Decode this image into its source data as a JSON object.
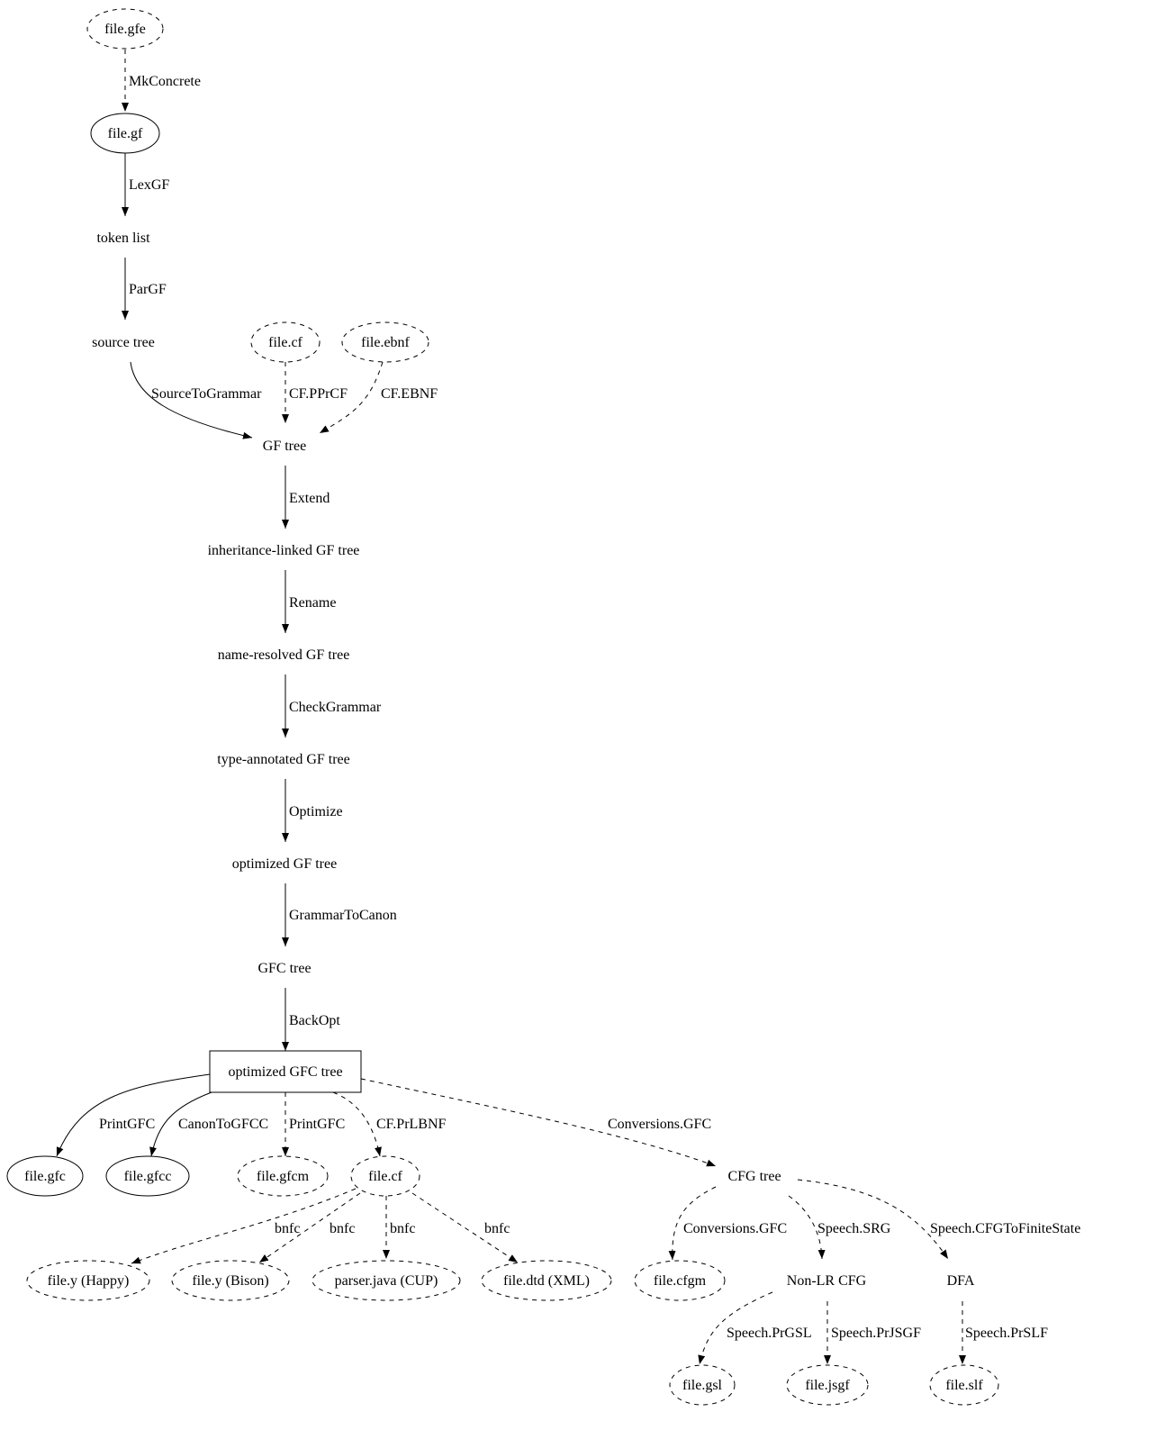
{
  "diagram": {
    "nodes": [
      {
        "id": "gfe",
        "label": "file.gfe",
        "shape": "ellipse",
        "style": "dashed"
      },
      {
        "id": "gf",
        "label": "file.gf",
        "shape": "ellipse",
        "style": "solid"
      },
      {
        "id": "tokens",
        "label": "token list",
        "shape": "plaintext",
        "style": "solid"
      },
      {
        "id": "source",
        "label": "source tree",
        "shape": "plaintext",
        "style": "solid"
      },
      {
        "id": "cf_in",
        "label": "file.cf",
        "shape": "ellipse",
        "style": "dashed"
      },
      {
        "id": "ebnf",
        "label": "file.ebnf",
        "shape": "ellipse",
        "style": "dashed"
      },
      {
        "id": "gftree",
        "label": "GF tree",
        "shape": "plaintext",
        "style": "solid"
      },
      {
        "id": "inh",
        "label": "inheritance-linked GF tree",
        "shape": "plaintext",
        "style": "solid"
      },
      {
        "id": "named",
        "label": "name-resolved GF tree",
        "shape": "plaintext",
        "style": "solid"
      },
      {
        "id": "typed",
        "label": "type-annotated GF tree",
        "shape": "plaintext",
        "style": "solid"
      },
      {
        "id": "opt",
        "label": "optimized GF tree",
        "shape": "plaintext",
        "style": "solid"
      },
      {
        "id": "gfc",
        "label": "GFC tree",
        "shape": "plaintext",
        "style": "solid"
      },
      {
        "id": "optgfc",
        "label": "optimized GFC tree",
        "shape": "box",
        "style": "solid"
      },
      {
        "id": "f_gfc",
        "label": "file.gfc",
        "shape": "ellipse",
        "style": "solid"
      },
      {
        "id": "f_gfcc",
        "label": "file.gfcc",
        "shape": "ellipse",
        "style": "solid"
      },
      {
        "id": "f_gfcm",
        "label": "file.gfcm",
        "shape": "ellipse",
        "style": "dashed"
      },
      {
        "id": "cf_out",
        "label": "file.cf",
        "shape": "ellipse",
        "style": "dashed"
      },
      {
        "id": "cfg",
        "label": "CFG tree",
        "shape": "plaintext",
        "style": "solid"
      },
      {
        "id": "happy",
        "label": "file.y (Happy)",
        "shape": "ellipse",
        "style": "dashed"
      },
      {
        "id": "bison",
        "label": "file.y (Bison)",
        "shape": "ellipse",
        "style": "dashed"
      },
      {
        "id": "cup",
        "label": "parser.java (CUP)",
        "shape": "ellipse",
        "style": "dashed"
      },
      {
        "id": "dtd",
        "label": "file.dtd (XML)",
        "shape": "ellipse",
        "style": "dashed"
      },
      {
        "id": "cfgm",
        "label": "file.cfgm",
        "shape": "ellipse",
        "style": "dashed"
      },
      {
        "id": "nonlr",
        "label": "Non-LR CFG",
        "shape": "plaintext",
        "style": "solid"
      },
      {
        "id": "dfa",
        "label": "DFA",
        "shape": "plaintext",
        "style": "solid"
      },
      {
        "id": "gsl",
        "label": "file.gsl",
        "shape": "ellipse",
        "style": "dashed"
      },
      {
        "id": "jsgf",
        "label": "file.jsgf",
        "shape": "ellipse",
        "style": "dashed"
      },
      {
        "id": "slf",
        "label": "file.slf",
        "shape": "ellipse",
        "style": "dashed"
      }
    ],
    "edges": [
      {
        "from": "gfe",
        "to": "gf",
        "label": "MkConcrete",
        "style": "dashed"
      },
      {
        "from": "gf",
        "to": "tokens",
        "label": "LexGF",
        "style": "solid"
      },
      {
        "from": "tokens",
        "to": "source",
        "label": "ParGF",
        "style": "solid"
      },
      {
        "from": "source",
        "to": "gftree",
        "label": "SourceToGrammar",
        "style": "solid"
      },
      {
        "from": "cf_in",
        "to": "gftree",
        "label": "CF.PPrCF",
        "style": "dashed"
      },
      {
        "from": "ebnf",
        "to": "gftree",
        "label": "CF.EBNF",
        "style": "dashed"
      },
      {
        "from": "gftree",
        "to": "inh",
        "label": "Extend",
        "style": "solid"
      },
      {
        "from": "inh",
        "to": "named",
        "label": "Rename",
        "style": "solid"
      },
      {
        "from": "named",
        "to": "typed",
        "label": "CheckGrammar",
        "style": "solid"
      },
      {
        "from": "typed",
        "to": "opt",
        "label": "Optimize",
        "style": "solid"
      },
      {
        "from": "opt",
        "to": "gfc",
        "label": "GrammarToCanon",
        "style": "solid"
      },
      {
        "from": "gfc",
        "to": "optgfc",
        "label": "BackOpt",
        "style": "solid"
      },
      {
        "from": "optgfc",
        "to": "f_gfc",
        "label": "PrintGFC",
        "style": "solid"
      },
      {
        "from": "optgfc",
        "to": "f_gfcc",
        "label": "CanonToGFCC",
        "style": "solid"
      },
      {
        "from": "optgfc",
        "to": "f_gfcm",
        "label": "PrintGFC",
        "style": "dashed"
      },
      {
        "from": "optgfc",
        "to": "cf_out",
        "label": "CF.PrLBNF",
        "style": "dashed"
      },
      {
        "from": "optgfc",
        "to": "cfg",
        "label": "Conversions.GFC",
        "style": "dashed"
      },
      {
        "from": "cf_out",
        "to": "happy",
        "label": "bnfc",
        "style": "dashed"
      },
      {
        "from": "cf_out",
        "to": "bison",
        "label": "bnfc",
        "style": "dashed"
      },
      {
        "from": "cf_out",
        "to": "cup",
        "label": "bnfc",
        "style": "dashed"
      },
      {
        "from": "cf_out",
        "to": "dtd",
        "label": "bnfc",
        "style": "dashed"
      },
      {
        "from": "cfg",
        "to": "cfgm",
        "label": "Conversions.GFC",
        "style": "dashed"
      },
      {
        "from": "cfg",
        "to": "nonlr",
        "label": "Speech.SRG",
        "style": "dashed"
      },
      {
        "from": "cfg",
        "to": "dfa",
        "label": "Speech.CFGToFiniteState",
        "style": "dashed"
      },
      {
        "from": "nonlr",
        "to": "gsl",
        "label": "Speech.PrGSL",
        "style": "dashed"
      },
      {
        "from": "nonlr",
        "to": "jsgf",
        "label": "Speech.PrJSGF",
        "style": "dashed"
      },
      {
        "from": "dfa",
        "to": "slf",
        "label": "Speech.PrSLF",
        "style": "dashed"
      }
    ]
  }
}
